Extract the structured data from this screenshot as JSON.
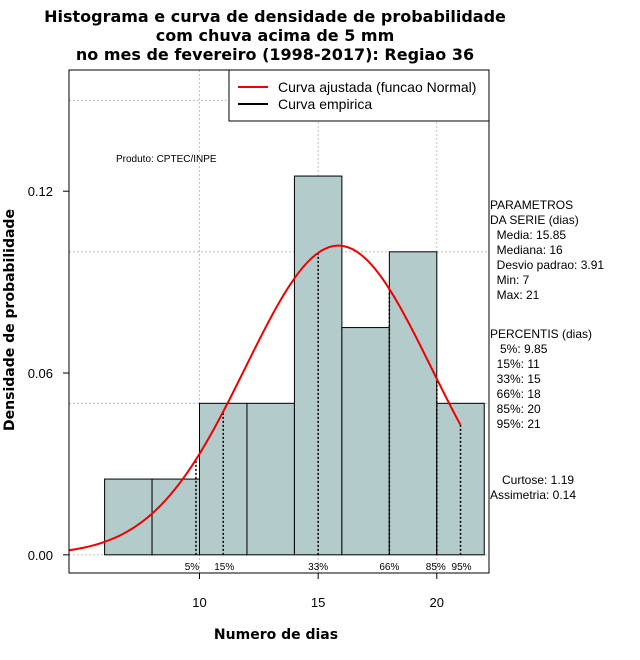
{
  "chart_data": {
    "type": "histogram",
    "title": [
      "Histograma e curva de densidade de probabilidade",
      "com chuva acima de 5 mm",
      "no mes de fevereiro (1998-2017): Regiao 36"
    ],
    "xlabel": "Numero de dias",
    "ylabel": "Densidade de probabilidade",
    "xlim": [
      4.5,
      22.2
    ],
    "ylim": [
      -0.006,
      0.16
    ],
    "x_ticks": [
      10,
      15,
      20
    ],
    "y_ticks": [
      0.0,
      0.06,
      0.12
    ],
    "y_tick_labels": [
      "0.00",
      "0.06",
      "0.12"
    ],
    "grid": true,
    "bars": [
      {
        "x0": 6,
        "x1": 8,
        "density": 0.025
      },
      {
        "x0": 8,
        "x1": 10,
        "density": 0.025
      },
      {
        "x0": 10,
        "x1": 12,
        "density": 0.05
      },
      {
        "x0": 12,
        "x1": 14,
        "density": 0.05
      },
      {
        "x0": 14,
        "x1": 16,
        "density": 0.125
      },
      {
        "x0": 16,
        "x1": 18,
        "density": 0.075
      },
      {
        "x0": 18,
        "x1": 20,
        "density": 0.1
      },
      {
        "x0": 20,
        "x1": 22,
        "density": 0.05
      }
    ],
    "normal_curve": {
      "mean": 15.85,
      "sd": 3.91,
      "x_from": 4.5,
      "x_to": 21
    },
    "percentile_markers": [
      {
        "label": "5%",
        "x": 9.85
      },
      {
        "label": "15%",
        "x": 11
      },
      {
        "label": "33%",
        "x": 15
      },
      {
        "label": "66%",
        "x": 18
      },
      {
        "label": "85%",
        "x": 20
      },
      {
        "label": "95%",
        "x": 21
      }
    ],
    "legend": {
      "position": "top-right",
      "entries": [
        {
          "label": "Curva ajustada (funcao Normal)",
          "color": "#ee0000"
        },
        {
          "label": "Curva empirica",
          "color": "#000000"
        }
      ]
    },
    "annotation": "Produto: CPTEC/INPE",
    "colors": {
      "bar_fill": "#b4cbcb",
      "curve": "#ee0000",
      "grid": "#b0b0b0"
    }
  },
  "side_panel": {
    "parametros_lines": [
      "PARAMETROS",
      "DA SERIE (dias)",
      "  Media: 15.85",
      "  Mediana: 16",
      "  Desvio padrao: 3.91",
      "  Min: 7",
      "  Max: 21"
    ],
    "percentis_lines": [
      "PERCENTIS (dias)",
      "   5%: 9.85",
      "  15%: 11",
      "  33%: 15",
      "  66%: 18",
      "  85%: 20",
      "  95%: 21"
    ],
    "curtose": "Curtose: 1.19",
    "assimetria": "Assimetria: 0.14"
  }
}
